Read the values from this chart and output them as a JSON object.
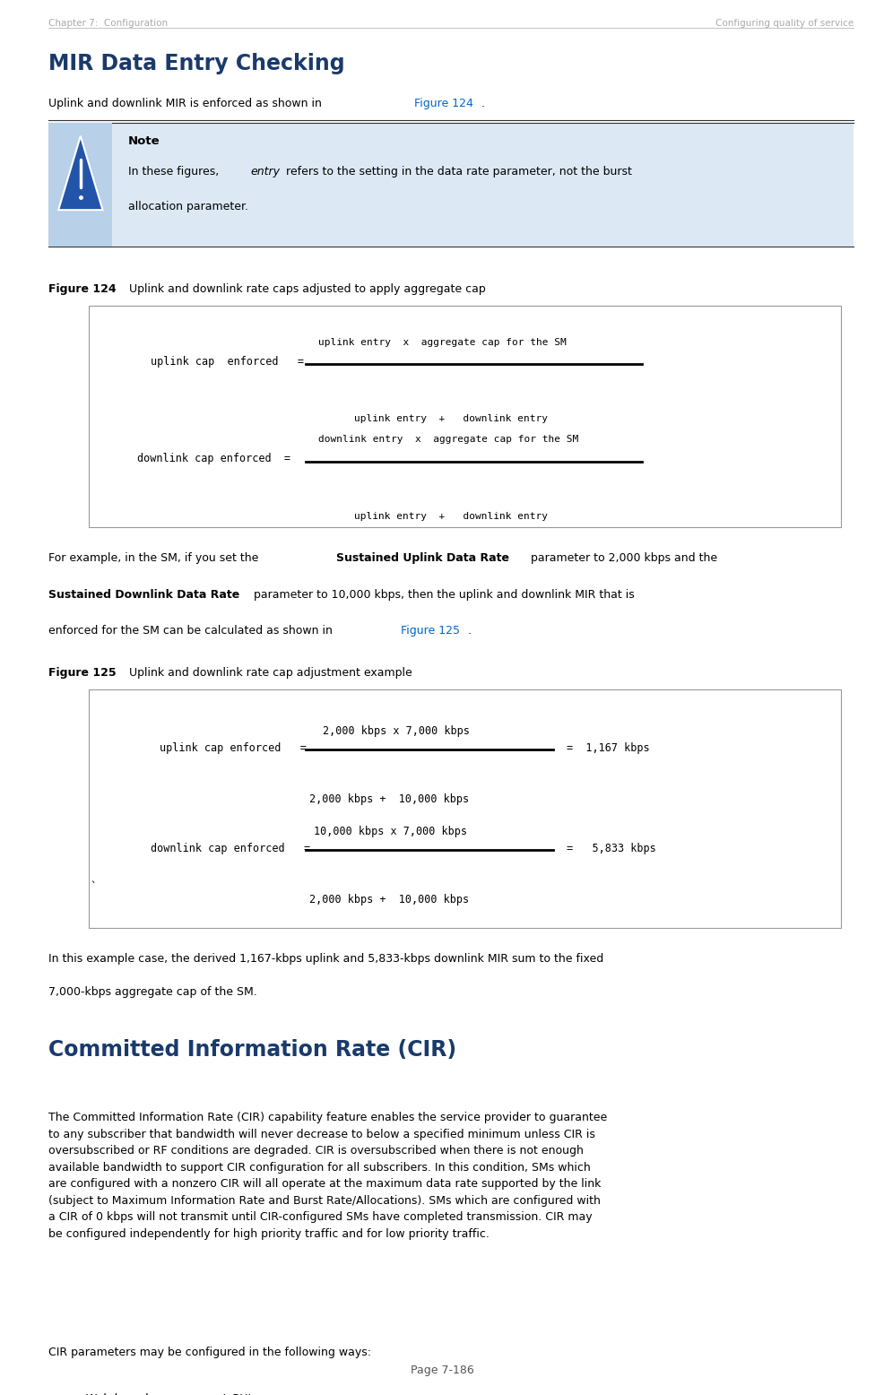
{
  "page_width": 9.87,
  "page_height": 15.56,
  "dpi": 100,
  "bg_color": "#ffffff",
  "header_left": "Chapter 7:  Configuration",
  "header_right": "Configuring quality of service",
  "header_color": "#aaaaaa",
  "main_title": "MIR Data Entry Checking",
  "main_title_color": "#1a3a6b",
  "body_text_color": "#000000",
  "link_color": "#0066cc",
  "section2_title": "Committed Information Rate (CIR)",
  "footer_text": "Page 7-186",
  "note_bg": "#dce9f5",
  "note_icon_bg": "#b8d0e8",
  "box_border": "#999999",
  "separator_color": "#333333",
  "L": 0.055,
  "R": 0.965
}
